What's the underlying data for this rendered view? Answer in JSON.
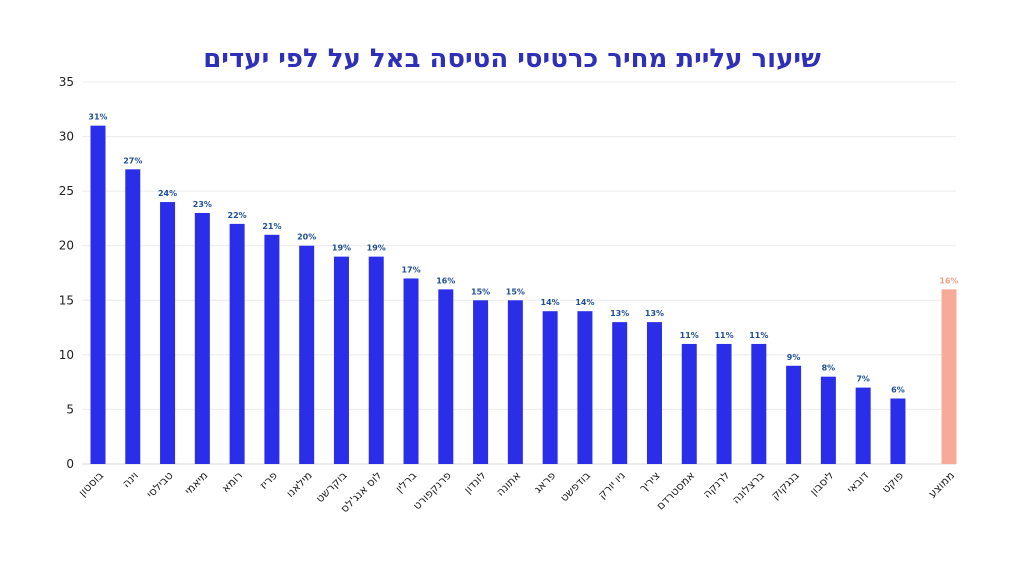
{
  "chart_data": {
    "type": "bar",
    "title": "שיעור עליית מחיר כרטיסי הטיסה באל על לפי יעדים",
    "xlabel": "",
    "ylabel": "",
    "ylim": [
      0,
      35
    ],
    "yticks": [
      0,
      5,
      10,
      15,
      20,
      25,
      30,
      35
    ],
    "grid": true,
    "categories": [
      "בוסטון",
      "וינה",
      "טבילסי",
      "מיאמי",
      "רומא",
      "פריז",
      "מילאנו",
      "בוקרשט",
      "לוס אנג'לס",
      "ברלין",
      "פרנקפורט",
      "לונדון",
      "אתונה",
      "פראג",
      "בודפשט",
      "ניו יורק",
      "ציריך",
      "אמסטרדם",
      "לרנקה",
      "ברצלונה",
      "בנגקוק",
      "ליסבון",
      "דובאי",
      "פוקט",
      "ממוצע"
    ],
    "values": [
      31,
      27,
      24,
      23,
      22,
      21,
      20,
      19,
      19,
      17,
      16,
      15,
      15,
      14,
      14,
      13,
      13,
      11,
      11,
      11,
      9,
      8,
      7,
      6,
      16
    ],
    "data_labels": [
      "31%",
      "27%",
      "24%",
      "23%",
      "22%",
      "21%",
      "20%",
      "19%",
      "19%",
      "17%",
      "16%",
      "15%",
      "15%",
      "14%",
      "14%",
      "13%",
      "13%",
      "11%",
      "11%",
      "11%",
      "9%",
      "8%",
      "7%",
      "6%",
      "16%"
    ],
    "colors": {
      "bar": "#2b2ee8",
      "average_bar": "#f5ab98",
      "label": "#1f4f96",
      "average_label": "#f0a08a"
    }
  }
}
